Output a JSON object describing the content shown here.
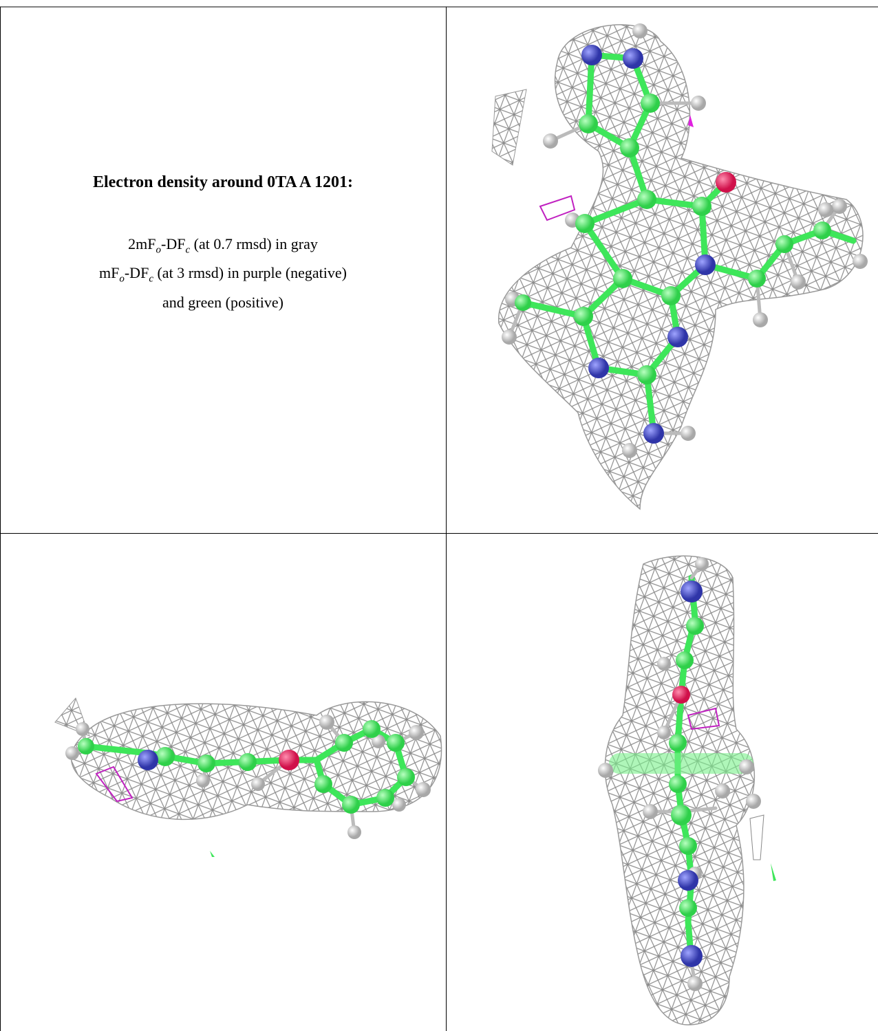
{
  "title": "Electron density around 0TA A 1201:",
  "caption_lines": [
    [
      "2mF",
      "o",
      "-DF",
      "c",
      " (at 0.7 rmsd) in gray"
    ],
    [
      "mF",
      "o",
      "-DF",
      "c",
      " (at 3 rmsd) in purple (negative)"
    ],
    [
      "and green (positive)"
    ]
  ]
}
